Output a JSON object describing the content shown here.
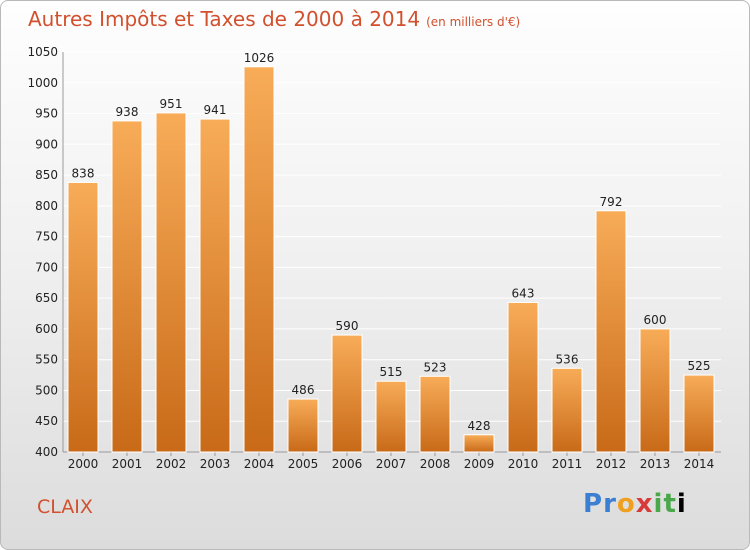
{
  "header": {
    "title": "Autres Impôts et Taxes de 2000 à 2014",
    "unit": "(en milliers d'€)"
  },
  "footer": {
    "commune": "CLAIX",
    "logo_letters": [
      "P",
      "r",
      "o",
      "x",
      "i",
      "t",
      "i"
    ]
  },
  "colors": {
    "title": "#d2502e",
    "bar_top": "#f8ac58",
    "bar_bottom": "#c86a18"
  },
  "chart_data": {
    "type": "bar",
    "title": "Autres Impôts et Taxes de 2000 à 2014",
    "subtitle": "(en milliers d'€)",
    "categories": [
      "2000",
      "2001",
      "2002",
      "2003",
      "2004",
      "2005",
      "2006",
      "2007",
      "2008",
      "2009",
      "2010",
      "2011",
      "2012",
      "2013",
      "2014"
    ],
    "values": [
      838,
      938,
      951,
      941,
      1026,
      486,
      590,
      515,
      523,
      428,
      643,
      536,
      792,
      600,
      525
    ],
    "ylim": [
      400,
      1050
    ],
    "yticks": [
      400,
      450,
      500,
      550,
      600,
      650,
      700,
      750,
      800,
      850,
      900,
      950,
      1000,
      1050
    ],
    "grid": true,
    "xlabel": "",
    "ylabel": ""
  }
}
